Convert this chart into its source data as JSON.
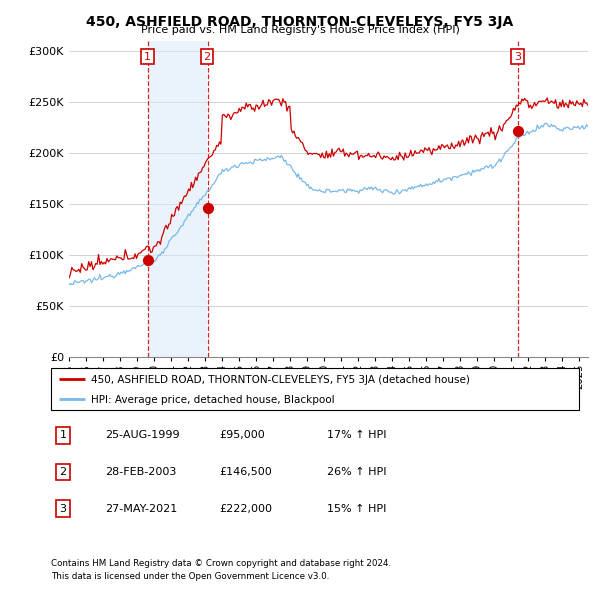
{
  "title": "450, ASHFIELD ROAD, THORNTON-CLEVELEYS, FY5 3JA",
  "subtitle": "Price paid vs. HM Land Registry's House Price Index (HPI)",
  "legend_line1": "450, ASHFIELD ROAD, THORNTON-CLEVELEYS, FY5 3JA (detached house)",
  "legend_line2": "HPI: Average price, detached house, Blackpool",
  "footnote1": "Contains HM Land Registry data © Crown copyright and database right 2024.",
  "footnote2": "This data is licensed under the Open Government Licence v3.0.",
  "sales": [
    {
      "num": 1,
      "date": "25-AUG-1999",
      "price": "£95,000",
      "change": "17% ↑ HPI"
    },
    {
      "num": 2,
      "date": "28-FEB-2003",
      "price": "£146,500",
      "change": "26% ↑ HPI"
    },
    {
      "num": 3,
      "date": "27-MAY-2021",
      "price": "£222,000",
      "change": "15% ↑ HPI"
    }
  ],
  "sale_years": [
    1999.65,
    2003.16,
    2021.41
  ],
  "sale_prices": [
    95000,
    146500,
    222000
  ],
  "hpi_color": "#7ab8e8",
  "price_color": "#cc0000",
  "shade_color": "#daeaf8",
  "ylim": [
    0,
    310000
  ],
  "xlim_start": 1995.0,
  "xlim_end": 2025.5,
  "yticks": [
    0,
    50000,
    100000,
    150000,
    200000,
    250000,
    300000
  ]
}
